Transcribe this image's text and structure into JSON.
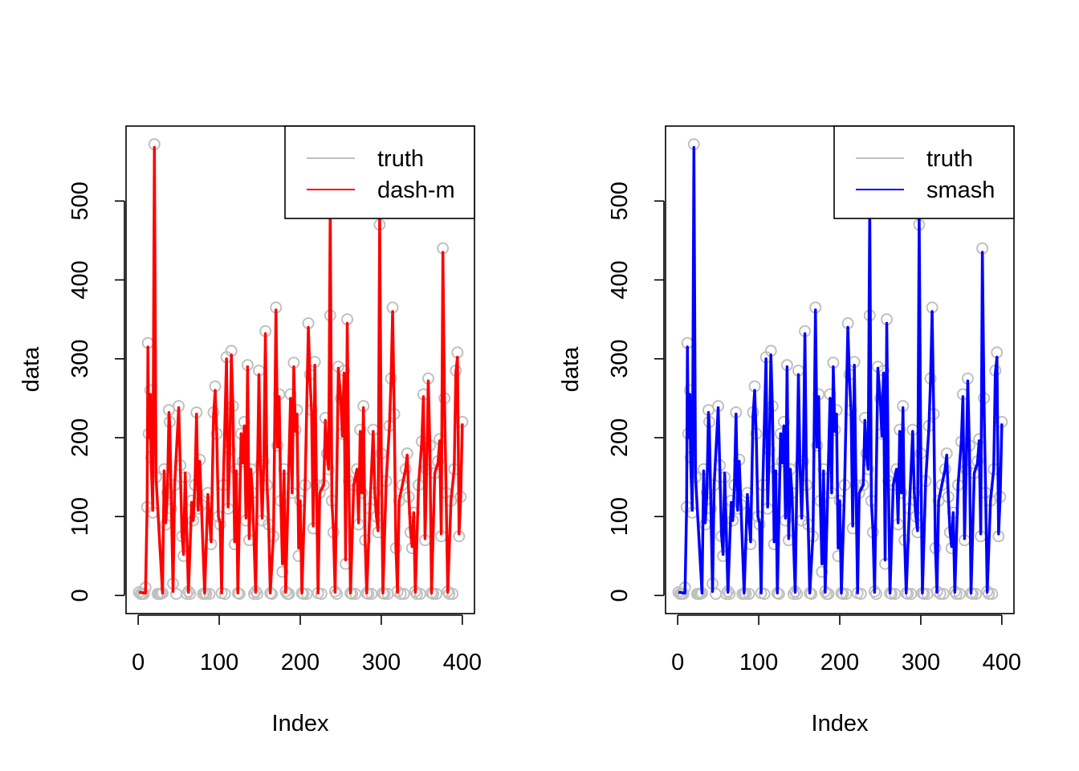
{
  "chart_data": [
    {
      "type": "line",
      "panel": "left",
      "xlabel": "Index",
      "ylabel": "data",
      "xlim": [
        -15,
        415
      ],
      "ylim": [
        -23,
        595
      ],
      "xticks": [
        0,
        100,
        200,
        300,
        400
      ],
      "yticks": [
        0,
        100,
        200,
        300,
        400,
        500
      ],
      "legend": {
        "placement": "top-right",
        "entries": [
          {
            "label": "truth",
            "color": "#c0c0c0"
          },
          {
            "label": "dash-m",
            "color": "#ff0000"
          }
        ]
      },
      "series": [
        {
          "name": "truth",
          "style": "points",
          "color": "#c0c0c0",
          "ref": "truth"
        },
        {
          "name": "dash-m",
          "style": "line",
          "color": "#ff0000",
          "ref": "estimate"
        }
      ]
    },
    {
      "type": "line",
      "panel": "right",
      "xlabel": "Index",
      "ylabel": "data",
      "xlim": [
        -15,
        415
      ],
      "ylim": [
        -23,
        595
      ],
      "xticks": [
        0,
        100,
        200,
        300,
        400
      ],
      "yticks": [
        0,
        100,
        200,
        300,
        400,
        500
      ],
      "legend": {
        "placement": "top-right",
        "entries": [
          {
            "label": "truth",
            "color": "#c0c0c0"
          },
          {
            "label": "smash",
            "color": "#0000ff"
          }
        ]
      },
      "series": [
        {
          "name": "truth",
          "style": "points",
          "color": "#c0c0c0",
          "ref": "truth"
        },
        {
          "name": "smash",
          "style": "line",
          "color": "#0000ff",
          "ref": "estimate"
        }
      ]
    }
  ],
  "truth_x": [
    1,
    9,
    11,
    12,
    13,
    15,
    16,
    18,
    20,
    22,
    30,
    32,
    34,
    36,
    38,
    39,
    41,
    43,
    45,
    50,
    52,
    54,
    56,
    58,
    62,
    66,
    68,
    70,
    72,
    74,
    76,
    78,
    82,
    86,
    90,
    93,
    95,
    97,
    99,
    101,
    103,
    105,
    109,
    111,
    113,
    115,
    117,
    119,
    121,
    123,
    127,
    129,
    131,
    133,
    135,
    137,
    139,
    141,
    145,
    149,
    151,
    153,
    155,
    157,
    159,
    161,
    163,
    167,
    170,
    172,
    174,
    176,
    178,
    180,
    182,
    188,
    190,
    192,
    194,
    196,
    198,
    200,
    202,
    206,
    210,
    212,
    214,
    216,
    218,
    220,
    222,
    224,
    229,
    231,
    233,
    235,
    237,
    239,
    241,
    243,
    247,
    250,
    252,
    254,
    256,
    258,
    260,
    262,
    266,
    270,
    272,
    274,
    276,
    278,
    280,
    282,
    286,
    290,
    292,
    294,
    296,
    298,
    300,
    302,
    306,
    310,
    312,
    314,
    316,
    318,
    320,
    322,
    326,
    330,
    332,
    334,
    336,
    338,
    340,
    342,
    346,
    350,
    352,
    354,
    356,
    358,
    360,
    362,
    366,
    370,
    372,
    374,
    376,
    378,
    380,
    382,
    386,
    390,
    392,
    394,
    396,
    398,
    400
  ],
  "truth_y": [
    4,
    10,
    112,
    320,
    205,
    260,
    175,
    105,
    572,
    150,
    3,
    160,
    90,
    130,
    235,
    220,
    110,
    15,
    140,
    240,
    165,
    75,
    50,
    150,
    5,
    120,
    95,
    140,
    232,
    110,
    172,
    115,
    3,
    130,
    65,
    232,
    265,
    205,
    100,
    90,
    3,
    140,
    302,
    110,
    185,
    310,
    240,
    65,
    160,
    3,
    205,
    170,
    220,
    95,
    292,
    70,
    160,
    130,
    5,
    285,
    165,
    95,
    170,
    335,
    140,
    90,
    3,
    75,
    365,
    190,
    255,
    120,
    30,
    160,
    5,
    255,
    130,
    295,
    210,
    235,
    50,
    120,
    3,
    140,
    345,
    280,
    235,
    85,
    296,
    140,
    3,
    130,
    140,
    225,
    180,
    160,
    355,
    120,
    80,
    5,
    290,
    250,
    205,
    285,
    40,
    350,
    145,
    3,
    140,
    160,
    90,
    210,
    130,
    240,
    70,
    3,
    110,
    210,
    130,
    100,
    80,
    470,
    180,
    3,
    145,
    215,
    275,
    365,
    230,
    60,
    5,
    120,
    140,
    160,
    180,
    125,
    80,
    60,
    105,
    5,
    140,
    195,
    255,
    70,
    160,
    275,
    190,
    3,
    155,
    170,
    198,
    75,
    440,
    250,
    130,
    5,
    120,
    160,
    285,
    308,
    75,
    125,
    220
  ],
  "extra_zero_x": [
    3,
    5,
    7,
    24,
    26,
    28,
    47,
    60,
    64,
    80,
    84,
    88,
    107,
    125,
    143,
    147,
    165,
    184,
    186,
    204,
    208,
    226,
    245,
    264,
    268,
    284,
    288,
    304,
    308,
    324,
    328,
    344,
    348,
    364,
    368,
    384,
    388
  ],
  "estimate_x": [
    1,
    9,
    11,
    12,
    13,
    15,
    16,
    18,
    20,
    22,
    30,
    32,
    34,
    36,
    38,
    39,
    41,
    43,
    45,
    50,
    52,
    54,
    56,
    58,
    62,
    66,
    68,
    70,
    72,
    74,
    76,
    78,
    82,
    86,
    90,
    93,
    95,
    97,
    99,
    101,
    103,
    105,
    109,
    111,
    113,
    115,
    117,
    119,
    121,
    123,
    127,
    129,
    131,
    133,
    135,
    137,
    139,
    141,
    145,
    149,
    151,
    153,
    155,
    157,
    159,
    161,
    163,
    167,
    170,
    172,
    174,
    176,
    178,
    180,
    182,
    188,
    190,
    192,
    194,
    196,
    198,
    200,
    202,
    206,
    210,
    212,
    214,
    216,
    218,
    220,
    222,
    224,
    229,
    231,
    233,
    235,
    237,
    239,
    241,
    243,
    247,
    250,
    252,
    254,
    256,
    258,
    260,
    262,
    266,
    270,
    272,
    274,
    276,
    278,
    280,
    282,
    286,
    290,
    292,
    294,
    296,
    298,
    300,
    302,
    306,
    310,
    312,
    314,
    316,
    318,
    320,
    322,
    326,
    330,
    332,
    334,
    336,
    338,
    340,
    342,
    346,
    350,
    352,
    354,
    356,
    358,
    360,
    362,
    366,
    370,
    372,
    374,
    376,
    378,
    380,
    382,
    386,
    390,
    392,
    394,
    396,
    398,
    400
  ],
  "estimate_y": [
    4,
    3,
    112,
    315,
    200,
    255,
    170,
    108,
    568,
    150,
    3,
    158,
    92,
    128,
    232,
    215,
    112,
    5,
    140,
    238,
    160,
    78,
    52,
    155,
    4,
    118,
    95,
    140,
    230,
    108,
    170,
    115,
    3,
    128,
    68,
    228,
    260,
    200,
    100,
    92,
    3,
    140,
    300,
    112,
    182,
    305,
    235,
    68,
    158,
    3,
    205,
    168,
    215,
    98,
    290,
    72,
    160,
    130,
    4,
    280,
    162,
    98,
    168,
    332,
    140,
    92,
    3,
    78,
    362,
    188,
    252,
    120,
    40,
    158,
    4,
    250,
    130,
    290,
    208,
    230,
    60,
    120,
    3,
    140,
    340,
    275,
    232,
    88,
    292,
    140,
    3,
    130,
    140,
    222,
    178,
    160,
    490,
    120,
    82,
    4,
    288,
    248,
    202,
    282,
    45,
    345,
    145,
    3,
    140,
    160,
    92,
    208,
    130,
    238,
    72,
    3,
    112,
    208,
    130,
    100,
    82,
    480,
    178,
    3,
    145,
    212,
    272,
    360,
    228,
    62,
    4,
    120,
    140,
    160,
    178,
    125,
    82,
    62,
    105,
    4,
    140,
    195,
    252,
    72,
    160,
    272,
    188,
    3,
    155,
    168,
    196,
    78,
    435,
    248,
    130,
    4,
    120,
    160,
    282,
    302,
    78,
    125,
    218
  ]
}
